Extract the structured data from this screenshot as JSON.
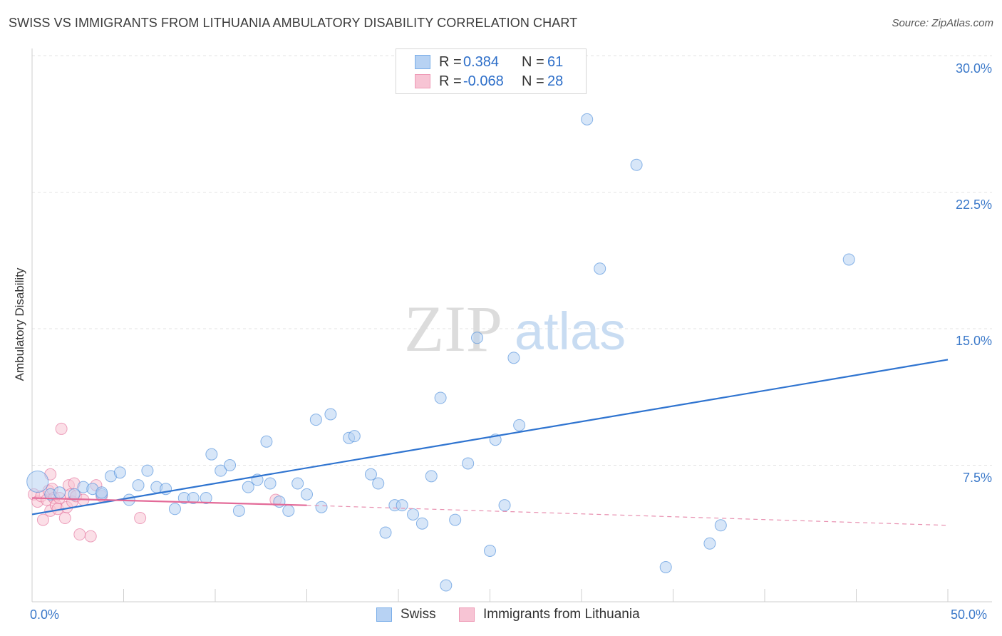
{
  "title": "SWISS VS IMMIGRANTS FROM LITHUANIA AMBULATORY DISABILITY CORRELATION CHART",
  "source": "Source: ZipAtlas.com",
  "watermark": {
    "zip": "ZIP",
    "atlas": "atlas"
  },
  "legend": {
    "rows": [
      {
        "r_label": "R =",
        "r_value": "0.384",
        "n_label": "N =",
        "n_value": "61",
        "color": "#7aaee8",
        "fill": "#b7d2f3"
      },
      {
        "r_label": "R =",
        "r_value": "-0.068",
        "n_label": "N =",
        "n_value": "28",
        "color": "#ee9ab6",
        "fill": "#f7c4d4"
      }
    ]
  },
  "bottom_legend": {
    "swiss": "Swiss",
    "lithuania": "Immigrants from Lithuania"
  },
  "axis_labels": {
    "x_min": "0.0%",
    "x_max": "50.0%",
    "y_ticks": [
      "30.0%",
      "22.5%",
      "15.0%",
      "7.5%"
    ]
  },
  "chart_data": {
    "type": "scatter",
    "title": "SWISS VS IMMIGRANTS FROM LITHUANIA AMBULATORY DISABILITY CORRELATION CHART",
    "xlabel": "",
    "ylabel": "Ambulatory Disability",
    "xlim": [
      0,
      50
    ],
    "ylim": [
      0,
      30
    ],
    "y_ticks": [
      7.5,
      15.0,
      22.5,
      30.0
    ],
    "grid": true,
    "legend_placement": "top-center",
    "series": [
      {
        "name": "Swiss",
        "color": "#4f8fdc",
        "fill": "#b7d2f3",
        "r": 0.384,
        "n": 61,
        "trend": {
          "x": [
            0,
            50
          ],
          "y": [
            4.8,
            13.3
          ],
          "style": "solid"
        },
        "points": [
          [
            0.3,
            6.6
          ],
          [
            1.0,
            5.9
          ],
          [
            1.5,
            6.0
          ],
          [
            2.3,
            5.9
          ],
          [
            2.8,
            6.3
          ],
          [
            3.3,
            6.2
          ],
          [
            3.8,
            5.9
          ],
          [
            4.3,
            6.9
          ],
          [
            4.8,
            7.1
          ],
          [
            5.3,
            5.6
          ],
          [
            5.8,
            6.4
          ],
          [
            6.3,
            7.2
          ],
          [
            6.8,
            6.3
          ],
          [
            7.3,
            6.2
          ],
          [
            7.8,
            5.1
          ],
          [
            8.3,
            5.7
          ],
          [
            8.8,
            5.7
          ],
          [
            9.5,
            5.7
          ],
          [
            9.8,
            8.1
          ],
          [
            10.3,
            7.2
          ],
          [
            10.8,
            7.5
          ],
          [
            11.3,
            5.0
          ],
          [
            11.8,
            6.3
          ],
          [
            12.3,
            6.7
          ],
          [
            12.8,
            8.8
          ],
          [
            13.0,
            6.5
          ],
          [
            13.5,
            5.5
          ],
          [
            14.0,
            5.0
          ],
          [
            14.5,
            6.5
          ],
          [
            15.0,
            5.9
          ],
          [
            15.5,
            10.0
          ],
          [
            15.8,
            5.2
          ],
          [
            16.3,
            10.3
          ],
          [
            17.3,
            9.0
          ],
          [
            17.6,
            9.1
          ],
          [
            18.5,
            7.0
          ],
          [
            18.9,
            6.5
          ],
          [
            19.3,
            3.8
          ],
          [
            19.8,
            5.3
          ],
          [
            20.2,
            5.3
          ],
          [
            20.8,
            4.8
          ],
          [
            21.3,
            4.3
          ],
          [
            21.8,
            6.9
          ],
          [
            22.3,
            11.2
          ],
          [
            22.6,
            0.9
          ],
          [
            23.1,
            4.5
          ],
          [
            23.8,
            7.6
          ],
          [
            24.3,
            14.5
          ],
          [
            25.0,
            2.8
          ],
          [
            25.3,
            8.9
          ],
          [
            25.8,
            5.3
          ],
          [
            26.3,
            13.4
          ],
          [
            26.6,
            9.7
          ],
          [
            30.3,
            26.5
          ],
          [
            31.0,
            18.3
          ],
          [
            33.0,
            24.0
          ],
          [
            34.6,
            1.9
          ],
          [
            37.0,
            3.2
          ],
          [
            37.6,
            4.2
          ],
          [
            44.6,
            18.8
          ],
          [
            3.8,
            6.0
          ]
        ]
      },
      {
        "name": "Immigrants from Lithuania",
        "color": "#e36a98",
        "fill": "#f7c4d4",
        "r": -0.068,
        "n": 28,
        "trend": {
          "x": [
            0,
            15
          ],
          "y": [
            5.7,
            5.3
          ],
          "style": "solid",
          "extended_x": [
            15,
            50
          ],
          "extended_y": [
            5.3,
            4.2
          ],
          "extended_style": "dashed"
        },
        "points": [
          [
            0.1,
            5.9
          ],
          [
            0.3,
            5.5
          ],
          [
            0.5,
            5.8
          ],
          [
            0.6,
            4.5
          ],
          [
            0.8,
            5.6
          ],
          [
            0.9,
            6.1
          ],
          [
            1.0,
            5.0
          ],
          [
            1.1,
            6.2
          ],
          [
            1.2,
            5.7
          ],
          [
            1.3,
            5.3
          ],
          [
            1.4,
            5.1
          ],
          [
            1.5,
            5.7
          ],
          [
            1.6,
            9.5
          ],
          [
            1.8,
            4.6
          ],
          [
            1.9,
            5.2
          ],
          [
            2.0,
            6.4
          ],
          [
            2.1,
            5.9
          ],
          [
            2.2,
            5.5
          ],
          [
            2.3,
            6.5
          ],
          [
            2.4,
            5.8
          ],
          [
            2.6,
            3.7
          ],
          [
            2.8,
            5.6
          ],
          [
            3.2,
            3.6
          ],
          [
            3.5,
            6.4
          ],
          [
            3.8,
            5.8
          ],
          [
            5.9,
            4.6
          ],
          [
            13.3,
            5.6
          ],
          [
            1.0,
            7.0
          ]
        ]
      }
    ]
  }
}
